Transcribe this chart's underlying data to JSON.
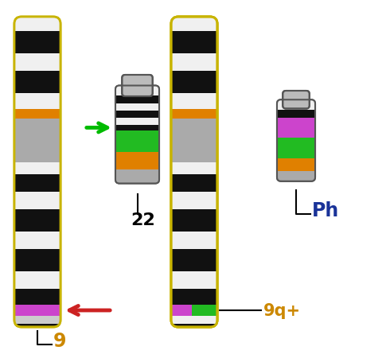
{
  "bg_color": "#ffffff",
  "chr_border": "#c8b400",
  "black": "#111111",
  "white": "#f0f0f0",
  "gray": "#aaaaaa",
  "orange": "#e08000",
  "purple": "#cc44cc",
  "green": "#22bb22",
  "darkgray": "#888888",
  "lightgray": "#cccccc",
  "label_9_color": "#cc8800",
  "label_Ph_color": "#1a3399",
  "label_9q_color": "#cc8800",
  "arrow_green_color": "#00bb00",
  "arrow_red_color": "#cc2222",
  "flask_border": "#555555",
  "flask_cap": "#bbbbbb"
}
